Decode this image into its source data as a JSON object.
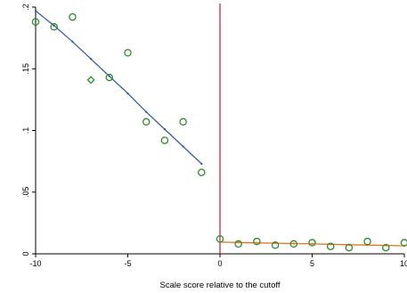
{
  "chart_data": {
    "type": "scatter",
    "xlabel": "Scale score relative to the cutoff",
    "ylabel": "",
    "xlim": [
      -10,
      10
    ],
    "ylim": [
      0,
      0.2
    ],
    "x_ticks": [
      -10,
      -5,
      0,
      5,
      10
    ],
    "x_tick_labels": [
      "-10",
      "-5",
      "0",
      "5",
      "10"
    ],
    "y_ticks": [
      0,
      0.05,
      0.1,
      0.15,
      0.2
    ],
    "y_tick_labels": [
      "0",
      ".05",
      ".1",
      ".15",
      ".2"
    ],
    "cutoff_x": 0,
    "grid": false,
    "colors": {
      "points": "#2e8b2e",
      "left_fit": "#3a5f9a",
      "right_fit": "#e8741a",
      "cutoff_line": "#c0183a",
      "axis": "#000000"
    },
    "series": [
      {
        "role": "left-points",
        "marker": "circle",
        "x": [
          -10,
          -9,
          -8,
          -6,
          -5,
          -4,
          -3,
          -2,
          -1
        ],
        "y": [
          0.188,
          0.184,
          0.192,
          0.143,
          0.163,
          0.107,
          0.092,
          0.107,
          0.066
        ]
      },
      {
        "role": "left-points-diamond",
        "marker": "diamond",
        "x": [
          -7
        ],
        "y": [
          0.141
        ]
      },
      {
        "role": "right-points",
        "marker": "circle",
        "x": [
          0,
          1,
          2,
          3,
          4,
          5,
          6,
          7,
          8,
          9,
          10
        ],
        "y": [
          0.012,
          0.008,
          0.01,
          0.007,
          0.008,
          0.009,
          0.006,
          0.005,
          0.01,
          0.005,
          0.009
        ]
      },
      {
        "role": "left-fit",
        "x": [
          -10,
          -9,
          -8,
          -7,
          -6,
          -5,
          -4,
          -3,
          -2,
          -1
        ],
        "y": [
          0.197,
          0.185,
          0.172,
          0.158,
          0.144,
          0.13,
          0.115,
          0.101,
          0.087,
          0.073
        ]
      },
      {
        "role": "right-fit",
        "x": [
          0,
          1,
          2,
          3,
          4,
          5,
          6,
          7,
          8,
          9,
          10
        ],
        "y": [
          0.0095,
          0.0092,
          0.0089,
          0.0086,
          0.0083,
          0.008,
          0.0077,
          0.0074,
          0.0071,
          0.0068,
          0.0065
        ]
      }
    ]
  }
}
